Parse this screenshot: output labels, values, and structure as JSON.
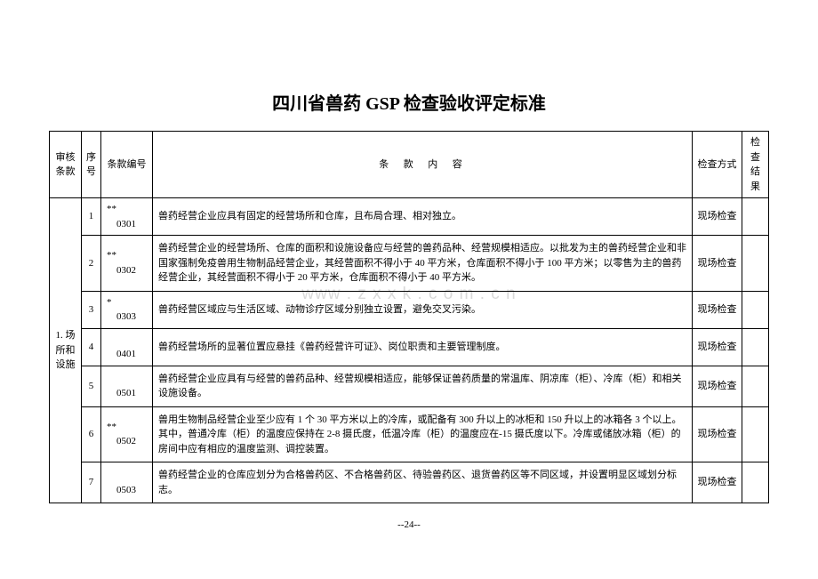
{
  "title": "四川省兽药 GSP 检查验收评定标准",
  "watermark": "www . z x x k . c o m . c n",
  "page_number": "--24--",
  "columns": {
    "group": "审核\n条款",
    "seq": "序号",
    "code": "条款编号",
    "content": "条款内容",
    "method": "检查方式",
    "result": "检查\n结果"
  },
  "group_label": "1. 场所和设施",
  "rows": [
    {
      "seq": "1",
      "code_prefix": "**",
      "code_num": "0301",
      "content": "兽药经营企业应具有固定的经营场所和仓库，且布局合理、相对独立。",
      "method": "现场检查",
      "result": ""
    },
    {
      "seq": "2",
      "code_prefix": "**",
      "code_num": "0302",
      "content": "兽药经营企业的经营场所、仓库的面积和设施设备应与经营的兽药品种、经营规模相适应。以批发为主的兽药经营企业和非国家强制免疫兽用生物制品经营企业，其经营面积不得小于 40 平方米，仓库面积不得小于 100 平方米；以零售为主的兽药经营企业，其经营面积不得小于 20 平方米，仓库面积不得小于 40 平方米。",
      "method": "现场检查",
      "result": ""
    },
    {
      "seq": "3",
      "code_prefix": "*",
      "code_num": "0303",
      "content": "兽药经营区域应与生活区域、动物诊疗区域分别独立设置，避免交叉污染。",
      "method": "现场检查",
      "result": ""
    },
    {
      "seq": "4",
      "code_prefix": "",
      "code_num": "0401",
      "content": "兽药经营场所的显著位置应悬挂《兽药经营许可证》、岗位职责和主要管理制度。",
      "method": "现场检查",
      "result": ""
    },
    {
      "seq": "5",
      "code_prefix": "",
      "code_num": "0501",
      "content": "兽药经营企业应具有与经营的兽药品种、经营规模相适应，能够保证兽药质量的常温库、阴凉库（柜）、冷库（柜）和相关设施设备。",
      "method": "现场检查",
      "result": ""
    },
    {
      "seq": "6",
      "code_prefix": "**",
      "code_num": "0502",
      "content": "兽用生物制品经营企业至少应有 1 个 30 平方米以上的冷库，或配备有 300 升以上的冰柜和 150 升以上的冰箱各 3 个以上。其中，普通冷库（柜）的温度应保持在 2-8 摄氏度，低温冷库（柜）的温度应在-15 摄氏度以下。冷库或储放冰箱（柜）的房间中应有相应的温度监测、调控装置。",
      "method": "现场检查",
      "result": ""
    },
    {
      "seq": "7",
      "code_prefix": "",
      "code_num": "0503",
      "content": "兽药经营企业的仓库应划分为合格兽药区、不合格兽药区、待验兽药区、退货兽药区等不同区域，并设置明显区域划分标志。",
      "method": "现场检查",
      "result": ""
    }
  ],
  "colors": {
    "text": "#000000",
    "background": "#ffffff",
    "border": "#000000",
    "watermark": "#d9d9d9"
  },
  "typography": {
    "title_fontsize_pt": 15,
    "body_fontsize_pt": 8.5,
    "font_family": "SimSun"
  }
}
